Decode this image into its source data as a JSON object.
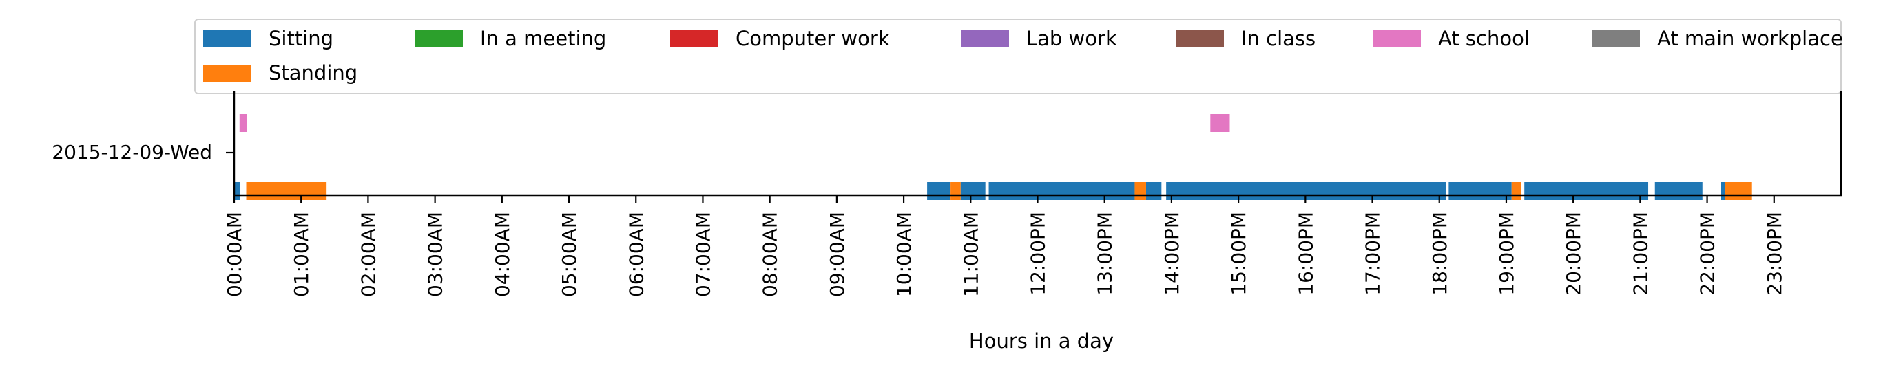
{
  "chart_data": {
    "type": "timeline",
    "xlabel": "Hours in a day",
    "ylabel": "",
    "title": "",
    "row_label": "2015-12-09-Wed",
    "xlim": [
      0,
      24
    ],
    "legend_placement": "top, above plot",
    "x_ticks": [
      {
        "value": 0,
        "label": "00:00AM"
      },
      {
        "value": 1,
        "label": "01:00AM"
      },
      {
        "value": 2,
        "label": "02:00AM"
      },
      {
        "value": 3,
        "label": "03:00AM"
      },
      {
        "value": 4,
        "label": "04:00AM"
      },
      {
        "value": 5,
        "label": "05:00AM"
      },
      {
        "value": 6,
        "label": "06:00AM"
      },
      {
        "value": 7,
        "label": "07:00AM"
      },
      {
        "value": 8,
        "label": "08:00AM"
      },
      {
        "value": 9,
        "label": "09:00AM"
      },
      {
        "value": 10,
        "label": "10:00AM"
      },
      {
        "value": 11,
        "label": "11:00AM"
      },
      {
        "value": 12,
        "label": "12:00PM"
      },
      {
        "value": 13,
        "label": "13:00PM"
      },
      {
        "value": 14,
        "label": "14:00PM"
      },
      {
        "value": 15,
        "label": "15:00PM"
      },
      {
        "value": 16,
        "label": "16:00PM"
      },
      {
        "value": 17,
        "label": "17:00PM"
      },
      {
        "value": 18,
        "label": "18:00PM"
      },
      {
        "value": 19,
        "label": "19:00PM"
      },
      {
        "value": 20,
        "label": "20:00PM"
      },
      {
        "value": 21,
        "label": "21:00PM"
      },
      {
        "value": 22,
        "label": "22:00PM"
      },
      {
        "value": 23,
        "label": "23:00PM"
      }
    ],
    "legend": [
      {
        "name": "Sitting",
        "color": "#1f77b4"
      },
      {
        "name": "In a meeting",
        "color": "#2ca02c"
      },
      {
        "name": "Computer work",
        "color": "#d62728"
      },
      {
        "name": "Lab work",
        "color": "#9467bd"
      },
      {
        "name": "In class",
        "color": "#8c564b"
      },
      {
        "name": "At school",
        "color": "#e377c2"
      },
      {
        "name": "At main workplace",
        "color": "#7f7f7f"
      },
      {
        "name": "Standing",
        "color": "#ff7f0e"
      }
    ],
    "series": [
      {
        "name": "Sitting",
        "color": "#1f77b4",
        "segments": [
          [
            0.0,
            0.09
          ],
          [
            0.21,
            0.26
          ],
          [
            10.35,
            10.7
          ],
          [
            10.85,
            11.22
          ],
          [
            11.27,
            13.45
          ],
          [
            13.62,
            13.85
          ],
          [
            13.92,
            18.1
          ],
          [
            18.14,
            19.08
          ],
          [
            19.27,
            21.12
          ],
          [
            21.22,
            21.93
          ],
          [
            22.2,
            22.27
          ]
        ]
      },
      {
        "name": "Standing",
        "color": "#ff7f0e",
        "segments": [
          [
            0.18,
            1.38
          ],
          [
            10.7,
            10.85
          ],
          [
            13.45,
            13.62
          ],
          [
            19.08,
            19.22
          ],
          [
            22.27,
            22.67
          ]
        ]
      },
      {
        "name": "At school",
        "color": "#e377c2",
        "segments": [
          [
            0.08,
            0.19
          ],
          [
            14.58,
            14.87
          ]
        ]
      }
    ]
  }
}
